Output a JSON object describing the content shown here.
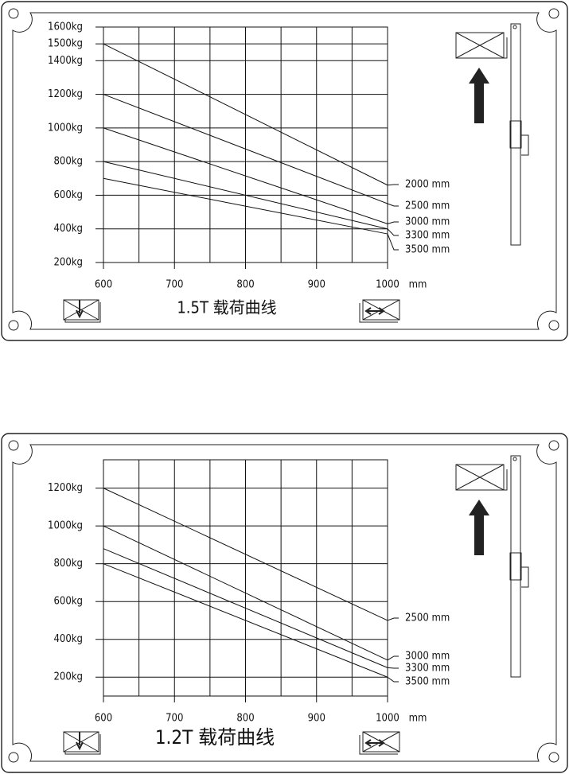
{
  "chart_data": [
    {
      "type": "line",
      "title": "1.5T 载荷曲线",
      "x_label": "mm",
      "color": "#111111",
      "grid": true,
      "x": [
        600,
        1000
      ],
      "xlim": [
        600,
        1000
      ],
      "xticks": [
        600,
        700,
        800,
        900,
        1000
      ],
      "ylim": [
        200,
        1600
      ],
      "yticks": [
        {
          "value": 200,
          "label": "200kg"
        },
        {
          "value": 400,
          "label": "400kg"
        },
        {
          "value": 600,
          "label": "600kg"
        },
        {
          "value": 800,
          "label": "800kg"
        },
        {
          "value": 1000,
          "label": "1000kg"
        },
        {
          "value": 1200,
          "label": "1200kg"
        },
        {
          "value": 1400,
          "label": "1400kg"
        },
        {
          "value": 1500,
          "label": "1500kg"
        },
        {
          "value": 1600,
          "label": "1600kg"
        }
      ],
      "series": [
        {
          "name": "2000 mm",
          "values": [
            1500,
            660
          ]
        },
        {
          "name": "2500 mm",
          "values": [
            1200,
            550
          ]
        },
        {
          "name": "3000 mm",
          "values": [
            1000,
            430
          ]
        },
        {
          "name": "3300 mm",
          "values": [
            800,
            400
          ]
        },
        {
          "name": "3500 mm",
          "values": [
            700,
            370
          ]
        }
      ]
    },
    {
      "type": "line",
      "title": "1.2T 载荷曲线",
      "x_label": "mm",
      "color": "#111111",
      "grid": true,
      "x": [
        600,
        1000
      ],
      "xlim": [
        600,
        1000
      ],
      "xticks": [
        600,
        700,
        800,
        900,
        1000
      ],
      "ylim": [
        100,
        1350
      ],
      "yticks": [
        {
          "value": 200,
          "label": "200kg"
        },
        {
          "value": 400,
          "label": "400kg"
        },
        {
          "value": 600,
          "label": "600kg"
        },
        {
          "value": 800,
          "label": "800kg"
        },
        {
          "value": 1000,
          "label": "1000kg"
        },
        {
          "value": 1200,
          "label": "1200kg"
        }
      ],
      "series": [
        {
          "name": "2500 mm",
          "values": [
            1200,
            500
          ]
        },
        {
          "name": "3000 mm",
          "values": [
            1000,
            290
          ]
        },
        {
          "name": "3300 mm",
          "values": [
            880,
            250
          ]
        },
        {
          "name": "3500 mm",
          "values": [
            800,
            200
          ]
        }
      ]
    }
  ]
}
